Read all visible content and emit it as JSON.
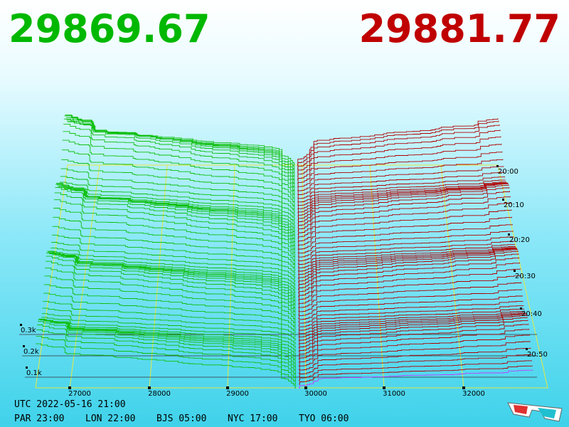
{
  "header": {
    "bid": "29869.67",
    "ask": "29881.77"
  },
  "price_axis": [
    "27000",
    "28000",
    "29000",
    "30000",
    "31000",
    "32000"
  ],
  "depth_axis": [
    "0.1k",
    "0.2k",
    "0.3k"
  ],
  "time_axis": [
    "20:00",
    "20:10",
    "20:20",
    "20:30",
    "20:40",
    "20:50"
  ],
  "footer": {
    "utc": "UTC 2022-05-16 21:00",
    "zones": [
      "PAR 23:00",
      "LON 22:00",
      "BJS 05:00",
      "NYC 17:00",
      "TYO 06:00"
    ]
  }
}
